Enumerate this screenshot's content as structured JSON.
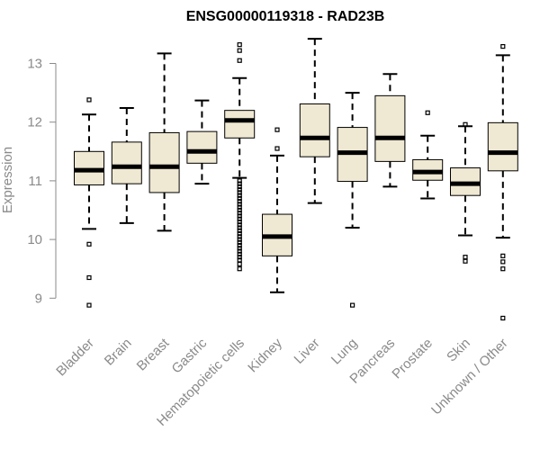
{
  "chart_data": {
    "type": "box",
    "title": "ENSG00000119318 - RAD23B",
    "ylabel": "Expression",
    "xlabel": "",
    "ylim": [
      8.6,
      13.6
    ],
    "yticks": [
      9,
      10,
      11,
      12,
      13
    ],
    "grid": false,
    "colors": {
      "box_fill": "#efe8d2",
      "box_stroke": "#000000",
      "axis": "#8a8a8a"
    },
    "categories": [
      "Bladder",
      "Brain",
      "Breast",
      "Gastric",
      "Hematopoietic cells",
      "Kidney",
      "Liver",
      "Lung",
      "Pancreas",
      "Prostate",
      "Skin",
      "Unknown / Other"
    ],
    "boxes": [
      {
        "name": "Bladder",
        "whisker_low": 10.18,
        "q1": 10.93,
        "median": 11.18,
        "q3": 11.5,
        "whisker_high": 12.13,
        "outliers": [
          12.38,
          9.92,
          9.35,
          8.88
        ]
      },
      {
        "name": "Brain",
        "whisker_low": 10.28,
        "q1": 10.95,
        "median": 11.24,
        "q3": 11.66,
        "whisker_high": 12.24,
        "outliers": []
      },
      {
        "name": "Breast",
        "whisker_low": 10.15,
        "q1": 10.8,
        "median": 11.24,
        "q3": 11.82,
        "whisker_high": 13.17,
        "outliers": []
      },
      {
        "name": "Gastric",
        "whisker_low": 10.95,
        "q1": 11.3,
        "median": 11.5,
        "q3": 11.84,
        "whisker_high": 12.37,
        "outliers": []
      },
      {
        "name": "Hematopoietic cells",
        "whisker_low": 11.05,
        "q1": 11.73,
        "median": 12.03,
        "q3": 12.2,
        "whisker_high": 12.75,
        "outliers": [
          13.32,
          13.22,
          13.05,
          11.0,
          10.95,
          10.9,
          10.85,
          10.8,
          10.75,
          10.7,
          10.65,
          10.6,
          10.55,
          10.5,
          10.45,
          10.4,
          10.35,
          10.3,
          10.25,
          10.2,
          10.15,
          10.1,
          10.05,
          10.0,
          9.95,
          9.9,
          9.85,
          9.8,
          9.75,
          9.7,
          9.65,
          9.58,
          9.5
        ]
      },
      {
        "name": "Kidney",
        "whisker_low": 9.1,
        "q1": 9.72,
        "median": 10.05,
        "q3": 10.43,
        "whisker_high": 11.43,
        "outliers": [
          11.87,
          11.55
        ]
      },
      {
        "name": "Liver",
        "whisker_low": 10.62,
        "q1": 11.41,
        "median": 11.73,
        "q3": 12.31,
        "whisker_high": 13.42,
        "outliers": []
      },
      {
        "name": "Lung",
        "whisker_low": 10.2,
        "q1": 10.99,
        "median": 11.48,
        "q3": 11.91,
        "whisker_high": 12.5,
        "outliers": [
          8.88
        ]
      },
      {
        "name": "Pancreas",
        "whisker_low": 10.9,
        "q1": 11.33,
        "median": 11.73,
        "q3": 12.45,
        "whisker_high": 12.82,
        "outliers": []
      },
      {
        "name": "Prostate",
        "whisker_low": 10.7,
        "q1": 11.01,
        "median": 11.15,
        "q3": 11.36,
        "whisker_high": 11.77,
        "outliers": [
          12.16
        ]
      },
      {
        "name": "Skin",
        "whisker_low": 10.07,
        "q1": 10.75,
        "median": 10.95,
        "q3": 11.22,
        "whisker_high": 11.93,
        "outliers": [
          11.96,
          9.7,
          9.63
        ]
      },
      {
        "name": "Unknown / Other",
        "whisker_low": 10.03,
        "q1": 11.17,
        "median": 11.48,
        "q3": 11.99,
        "whisker_high": 13.14,
        "outliers": [
          13.29,
          9.72,
          9.62,
          9.5,
          8.66
        ]
      }
    ]
  }
}
